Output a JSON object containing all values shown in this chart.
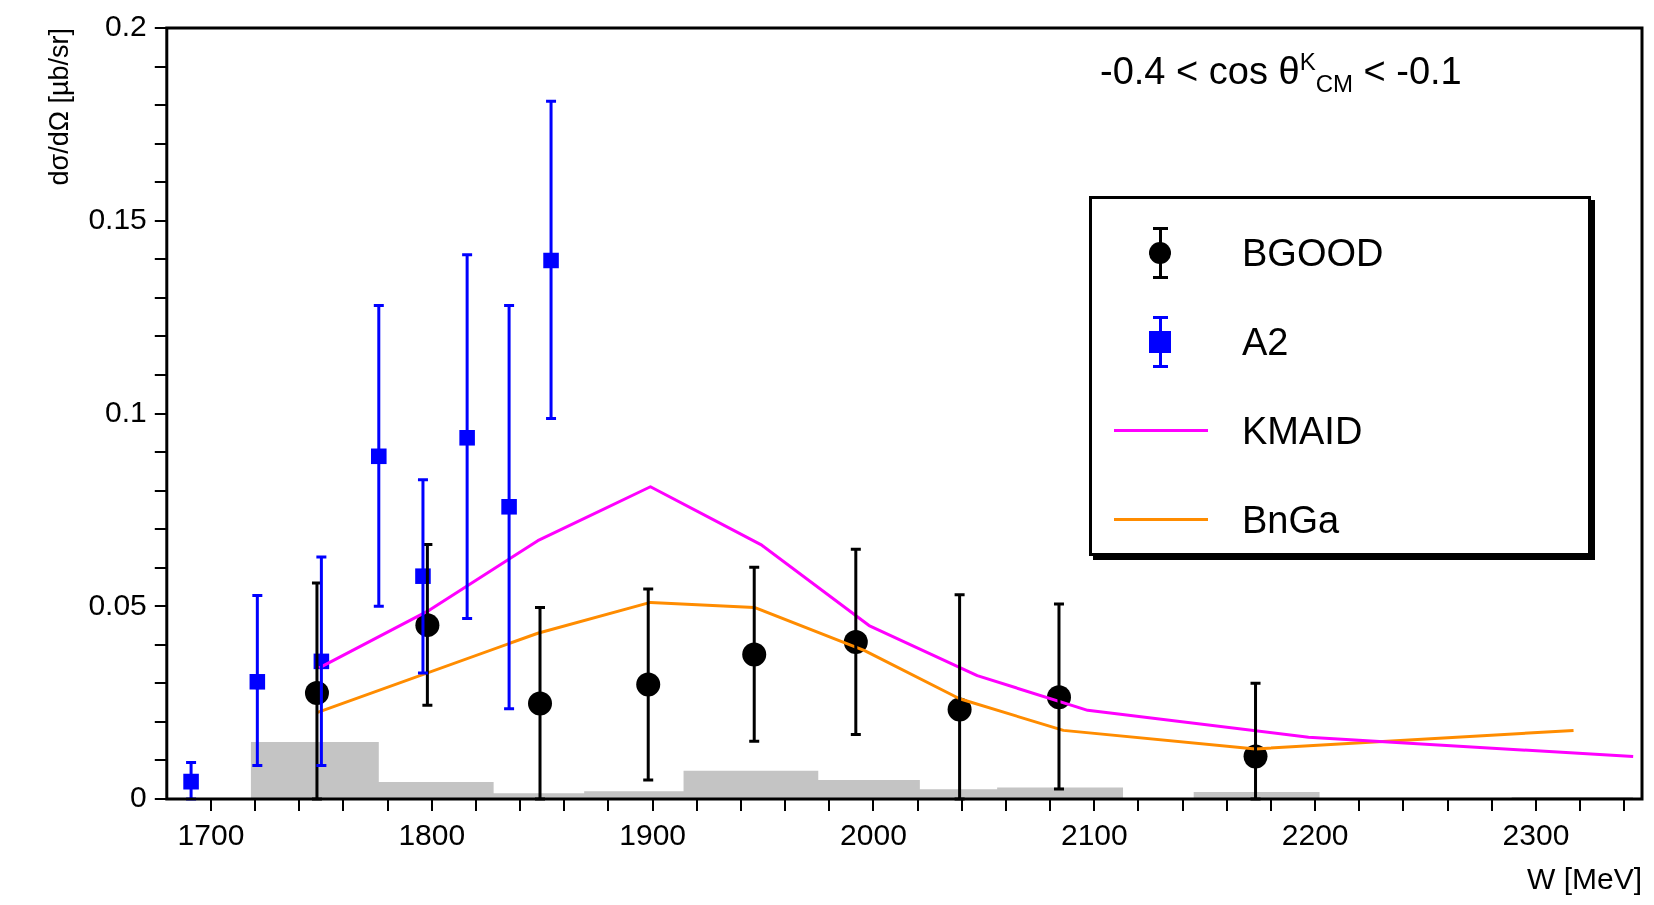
{
  "chart_data": {
    "type": "scatter",
    "xlabel": "W [MeV]",
    "ylabel": "dσ/dΩ [µb/sr]",
    "annotations": [
      "-0.4 < cos θ$^{K}$$_{CM}$ < -0.1"
    ],
    "xlim": [
      1680,
      2348
    ],
    "ylim": [
      0,
      0.2
    ],
    "xticks": [
      1700,
      {
        "value": 1720,
        "label": null
      },
      {
        "value": 1740,
        "label": null
      },
      {
        "value": 1760,
        "label": null
      },
      {
        "value": 1780,
        "label": null
      },
      1800,
      {
        "value": 1820,
        "label": null
      },
      {
        "value": 1840,
        "label": null
      },
      {
        "value": 1860,
        "label": null
      },
      {
        "value": 1880,
        "label": null
      },
      1900,
      {
        "value": 1920,
        "label": null
      },
      {
        "value": 1940,
        "label": null
      },
      {
        "value": 1960,
        "label": null
      },
      {
        "value": 1980,
        "label": null
      },
      2000,
      {
        "value": 2020,
        "label": null
      },
      {
        "value": 2040,
        "label": null
      },
      {
        "value": 2060,
        "label": null
      },
      {
        "value": 2080,
        "label": null
      },
      2100,
      {
        "value": 2120,
        "label": null
      },
      {
        "value": 2140,
        "label": null
      },
      {
        "value": 2160,
        "label": null
      },
      {
        "value": 2180,
        "label": null
      },
      2200,
      {
        "value": 2220,
        "label": null
      },
      {
        "value": 2240,
        "label": null
      },
      {
        "value": 2260,
        "label": null
      },
      {
        "value": 2280,
        "label": null
      },
      2300,
      {
        "value": 2320,
        "label": null
      },
      {
        "value": 2340,
        "label": null
      }
    ],
    "yticks": [
      0,
      {
        "value": 0.01,
        "label": null
      },
      {
        "value": 0.02,
        "label": null
      },
      {
        "value": 0.03,
        "label": null
      },
      {
        "value": 0.04,
        "label": null
      },
      0.05,
      {
        "value": 0.06,
        "label": null
      },
      {
        "value": 0.07,
        "label": null
      },
      {
        "value": 0.08,
        "label": null
      },
      {
        "value": 0.09,
        "label": null
      },
      0.1,
      {
        "value": 0.11,
        "label": null
      },
      {
        "value": 0.12,
        "label": null
      },
      {
        "value": 0.13,
        "label": null
      },
      {
        "value": 0.14,
        "label": null
      },
      0.15,
      {
        "value": 0.16,
        "label": null
      },
      {
        "value": 0.17,
        "label": null
      },
      {
        "value": 0.18,
        "label": null
      },
      {
        "value": 0.19,
        "label": null
      },
      0.2
    ],
    "legend": "top right",
    "series": [
      {
        "type": "scatter",
        "name": "BGOOD",
        "color": "#000000",
        "marker": "circle",
        "x": [
          1748,
          1798,
          1849,
          1898,
          1946,
          1992,
          2039,
          2084,
          2173
        ],
        "values": [
          0.0275,
          0.0451,
          0.0248,
          0.0297,
          0.0375,
          0.0407,
          0.0232,
          0.0264,
          0.011
        ],
        "errors": [
          [
            0,
            0.056
          ],
          [
            0.0243,
            0.066
          ],
          [
            0,
            0.0497
          ],
          [
            0.0049,
            0.0545
          ],
          [
            0.015,
            0.0601
          ],
          [
            0.0167,
            0.0648
          ],
          [
            0,
            0.053
          ],
          [
            0.0026,
            0.0506
          ],
          [
            0,
            0.03
          ]
        ]
      },
      {
        "type": "scatter",
        "name": "A2",
        "color": "#0000ff",
        "marker": "square",
        "x": [
          1691,
          1721,
          1750,
          1776,
          1796,
          1816,
          1835,
          1854
        ],
        "values": [
          0.0045,
          0.0304,
          0.0357,
          0.0889,
          0.0578,
          0.0937,
          0.0758,
          0.1397
        ],
        "errors": [
          [
            0,
            0.0095
          ],
          [
            0.0087,
            0.0528
          ],
          [
            0.0087,
            0.0628
          ],
          [
            0.05,
            0.128
          ],
          [
            0.0327,
            0.0828
          ],
          [
            0.0468,
            0.1412
          ],
          [
            0.0234,
            0.128
          ],
          [
            0.0987,
            0.181
          ]
        ]
      },
      {
        "type": "line",
        "name": "KMAID",
        "color": "#ff00ff",
        "marker": "none",
        "x": [
          1749,
          1799,
          1848,
          1899,
          1949,
          1998,
          2047,
          2097,
          2197,
          2344
        ],
        "values": [
          0.034,
          0.049,
          0.067,
          0.081,
          0.066,
          0.045,
          0.032,
          0.023,
          0.016,
          0.011
        ]
      },
      {
        "type": "line",
        "name": "BnGa",
        "color": "#ff8c00",
        "marker": "none",
        "x": [
          1748,
          1848,
          1899,
          1946,
          1996,
          2039,
          2086,
          2173,
          2317
        ],
        "values": [
          0.0224,
          0.043,
          0.051,
          0.0497,
          0.0385,
          0.026,
          0.0178,
          0.013,
          0.0178
        ]
      },
      {
        "type": "histogram",
        "color": "#c4c4c4",
        "bins": [
          1718,
          1776,
          1828,
          1869,
          1914,
          1975,
          2021,
          2056,
          2113,
          2145,
          2202,
          2289,
          2344
        ],
        "values": [
          0.0148,
          0.0044,
          0.0015,
          0.002,
          0.0073,
          0.0049,
          0.0025,
          0.003,
          0,
          0.0018,
          0,
          0.0005
        ]
      }
    ]
  }
}
